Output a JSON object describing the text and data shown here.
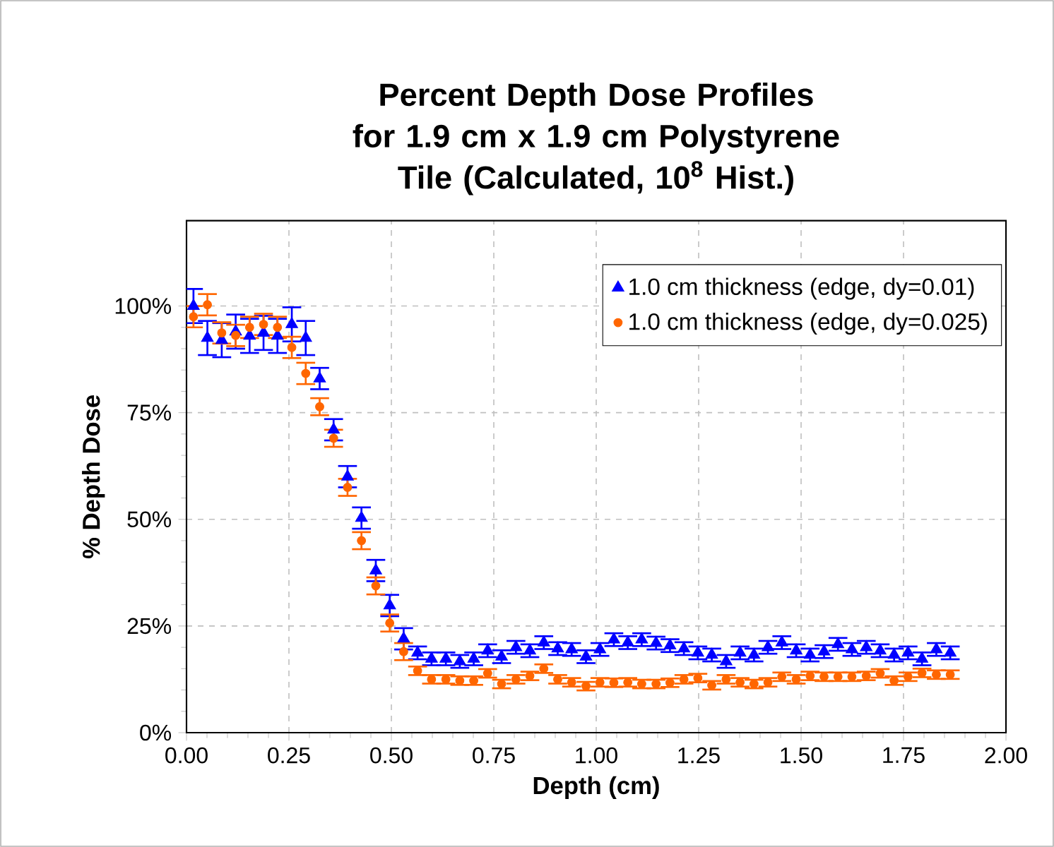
{
  "chart_data": {
    "type": "scatter",
    "title": "Percent Depth Dose Profiles for 1.9 cm x 1.9 cm Polystyrene Tile (Calculated, 10$^{8}$ Hist.)",
    "xlabel": "Depth (cm)",
    "ylabel": "% Depth Dose",
    "x": [
      0.017,
      0.051,
      0.086,
      0.12,
      0.154,
      0.188,
      0.222,
      0.257,
      0.291,
      0.325,
      0.359,
      0.393,
      0.427,
      0.462,
      0.496,
      0.53,
      0.564,
      0.598,
      0.633,
      0.667,
      0.701,
      0.735,
      0.769,
      0.804,
      0.838,
      0.872,
      0.906,
      0.94,
      0.975,
      1.009,
      1.043,
      1.077,
      1.111,
      1.146,
      1.18,
      1.214,
      1.248,
      1.282,
      1.317,
      1.351,
      1.385,
      1.419,
      1.453,
      1.488,
      1.522,
      1.556,
      1.59,
      1.624,
      1.659,
      1.693,
      1.727,
      1.761,
      1.795,
      1.83,
      1.864
    ],
    "series": [
      {
        "name": "1.0 cm thickness (edge, dy=0.01)",
        "color": "#0000ff",
        "marker": "triangle",
        "values": [
          100,
          92.5,
          92,
          94,
          93,
          93.7,
          93,
          95.7,
          92.5,
          83,
          71,
          60,
          50.3,
          38,
          29.8,
          22,
          18.7,
          17.3,
          17.3,
          16.7,
          17.3,
          19.2,
          17.8,
          20,
          19.2,
          21.1,
          19.7,
          19.5,
          17.8,
          19.5,
          21.8,
          21.1,
          21.8,
          21,
          20.4,
          19.7,
          18.7,
          18.2,
          16.7,
          18.7,
          18.2,
          20,
          21.1,
          19.2,
          18.2,
          19,
          20.7,
          19.5,
          20,
          19.2,
          18.2,
          18.7,
          17.3,
          19.5,
          18.7
        ],
        "errors": [
          4,
          4,
          4,
          4,
          4,
          4,
          4,
          4,
          4,
          2.5,
          2.5,
          2.5,
          2.5,
          2.5,
          2.5,
          2.5,
          1.5,
          1.5,
          1.5,
          1.5,
          1.5,
          1.5,
          1.5,
          1.5,
          1.5,
          1.5,
          1.5,
          1.5,
          1.5,
          1.5,
          1.5,
          1.5,
          1.5,
          1.5,
          1.5,
          1.5,
          1.5,
          1.5,
          1.5,
          1.5,
          1.5,
          1.5,
          1.5,
          1.5,
          1.5,
          1.5,
          1.5,
          1.5,
          1.5,
          1.5,
          1.5,
          1.5,
          1.5,
          1.5,
          1.5
        ]
      },
      {
        "name": "1.0 cm thickness (edge, dy=0.025)",
        "color": "#ff6600",
        "marker": "circle",
        "values": [
          97.5,
          100.3,
          93.7,
          93.1,
          95,
          95.7,
          95,
          90.3,
          84.2,
          76.4,
          69,
          57.5,
          45,
          34.4,
          25.7,
          19,
          14.5,
          12.5,
          12.5,
          12.2,
          12.2,
          13.9,
          11.4,
          12.5,
          13.3,
          15,
          12.5,
          11.8,
          10.9,
          11.8,
          11.7,
          11.8,
          11.4,
          11.4,
          11.7,
          12.5,
          12.8,
          11.1,
          12.5,
          11.8,
          11.4,
          11.8,
          13.1,
          12.5,
          13.3,
          13.1,
          13.1,
          13.1,
          13.3,
          13.9,
          12.2,
          13.1,
          14,
          13.6,
          13.6
        ],
        "errors": [
          2.5,
          2.5,
          2.5,
          2.5,
          2.5,
          2.5,
          2.5,
          2.5,
          2.5,
          2,
          2,
          2,
          2,
          2,
          2,
          2,
          1,
          1,
          1,
          1,
          1,
          1,
          1,
          1,
          1,
          1,
          1,
          1,
          1,
          1,
          1,
          1,
          1,
          1,
          1,
          1,
          1,
          1,
          1,
          1,
          1,
          1,
          1,
          1,
          1,
          1,
          1,
          1,
          1,
          1,
          1,
          1,
          1,
          1,
          1
        ]
      }
    ],
    "xlim": [
      0,
      2
    ],
    "ylim": [
      0,
      120
    ],
    "xticks": [
      {
        "value": 0,
        "label": "0.00"
      },
      {
        "value": 0.25,
        "label": "0.25"
      },
      {
        "value": 0.5,
        "label": "0.50"
      },
      {
        "value": 0.75,
        "label": "0.75"
      },
      {
        "value": 1,
        "label": "1.00"
      },
      {
        "value": 1.25,
        "label": "1.25"
      },
      {
        "value": 1.5,
        "label": "1.50"
      },
      {
        "value": 1.75,
        "label": "1.75"
      },
      {
        "value": 2,
        "label": "2.00"
      }
    ],
    "yticks": [
      {
        "value": 0,
        "label": "0%"
      },
      {
        "value": 25,
        "label": "25%"
      },
      {
        "value": 50,
        "label": "50%"
      },
      {
        "value": 75,
        "label": "75%"
      },
      {
        "value": 100,
        "label": "100%"
      }
    ],
    "grid": true,
    "legend": "top right"
  }
}
